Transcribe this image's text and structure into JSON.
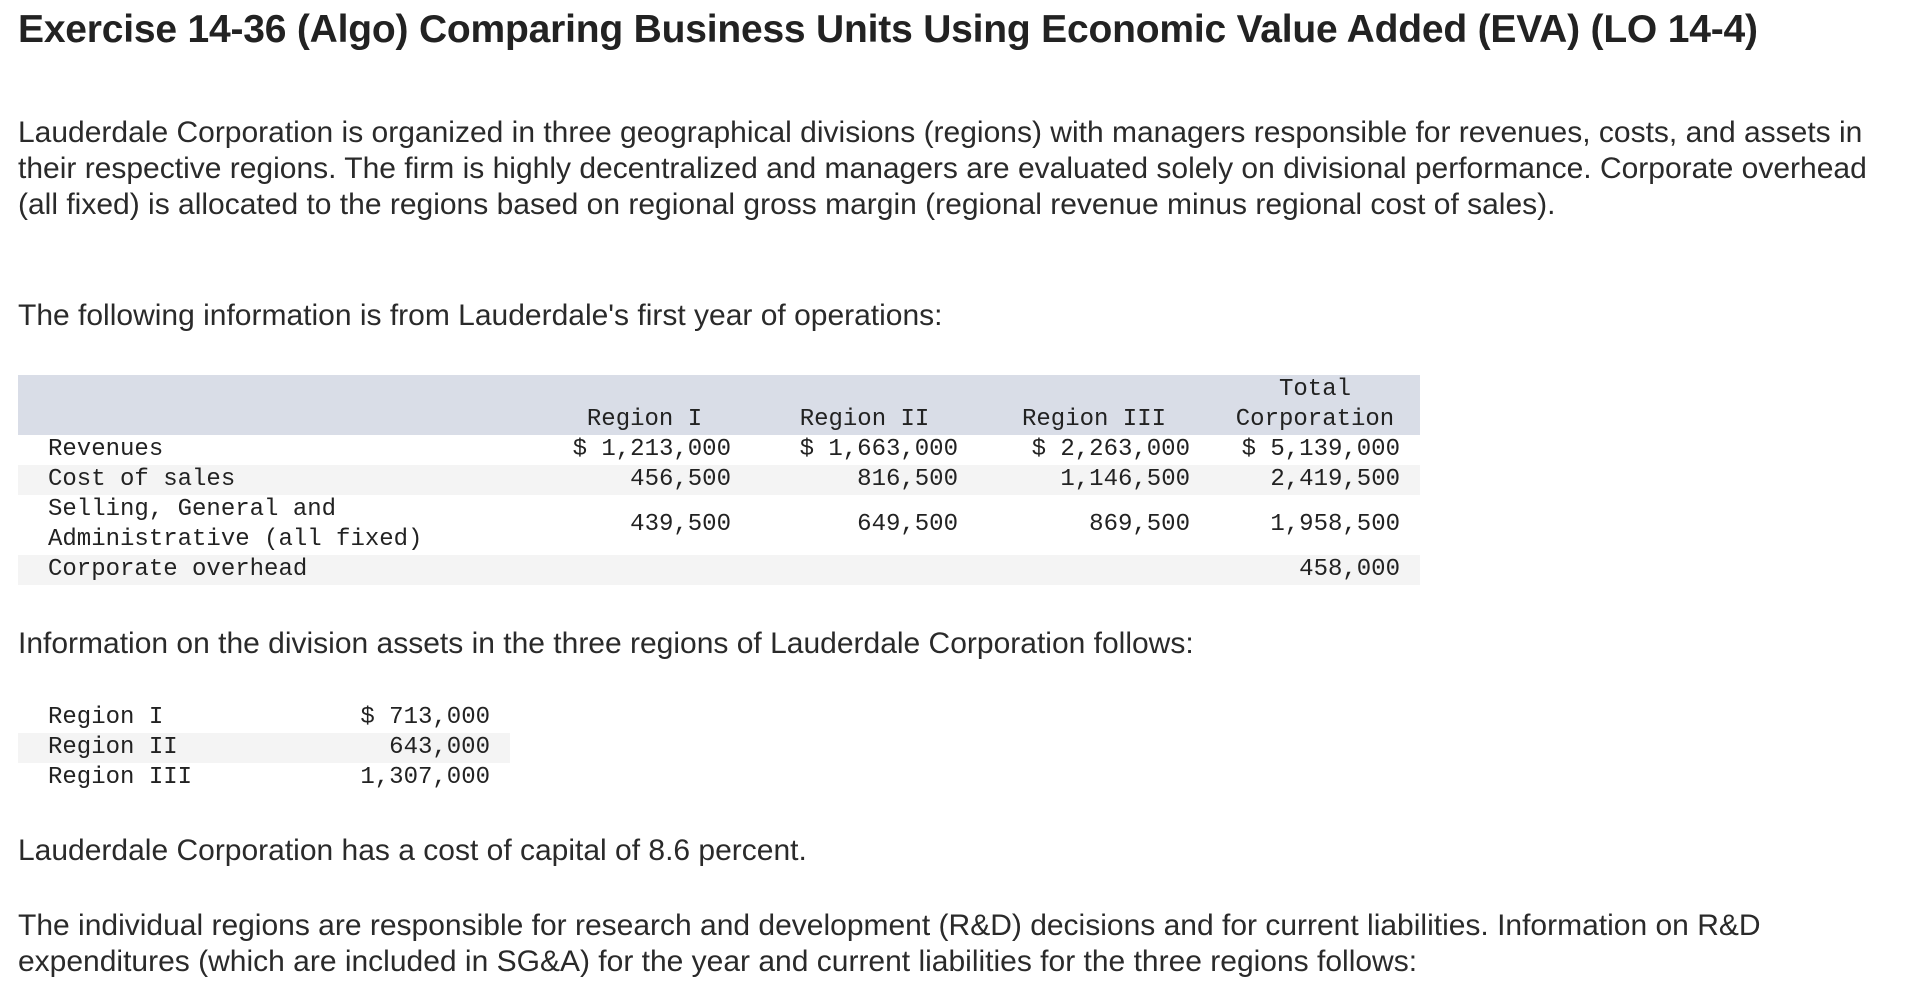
{
  "title": "Exercise 14-36 (Algo) Comparing Business Units Using Economic Value Added (EVA) (LO 14-4)",
  "intro": "Lauderdale Corporation is organized in three geographical divisions (regions) with managers responsible for revenues, costs, and assets in their respective regions. The firm is highly decentralized and managers are evaluated solely on divisional performance. Corporate overhead (all fixed) is allocated to the regions based on regional gross margin (regional revenue minus regional cost of sales).",
  "following": "The following information is from Lauderdale's first year of operations:",
  "income_table": {
    "headers": [
      "Region I",
      "Region II",
      "Region III",
      "Total",
      "Corporation"
    ],
    "rows": [
      {
        "label": "Revenues",
        "values": [
          "$ 1,213,000",
          "$ 1,663,000",
          "$ 2,263,000",
          "$ 5,139,000"
        ]
      },
      {
        "label": "Cost of sales",
        "values": [
          "456,500",
          "816,500",
          "1,146,500",
          "2,419,500"
        ]
      },
      {
        "label": "Selling, General and",
        "label2": "Administrative (all fixed)",
        "values": [
          "439,500",
          "649,500",
          "869,500",
          "1,958,500"
        ]
      },
      {
        "label": "Corporate overhead",
        "values": [
          "",
          "",
          "",
          "458,000"
        ]
      }
    ]
  },
  "assets_intro": "Information on the division assets in the three regions of Lauderdale Corporation follows:",
  "assets_table": [
    {
      "label": "Region I",
      "value": "$ 713,000"
    },
    {
      "label": "Region II",
      "value": "643,000"
    },
    {
      "label": "Region III",
      "value": "1,307,000"
    }
  ],
  "cost_of_capital": "Lauderdale Corporation has a cost of capital of 8.6 percent.",
  "rd_intro": "The individual regions are responsible for research and development (R&D) decisions and for current liabilities. Information on R&D expenditures (which are included in SG&A) for the year and current liabilities for the three regions follows:"
}
